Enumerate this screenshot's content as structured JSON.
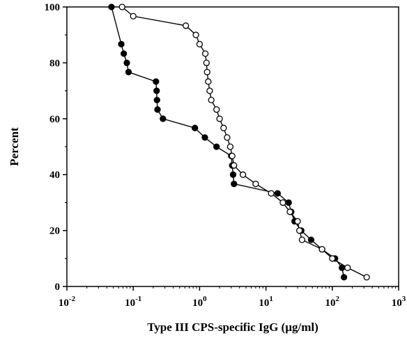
{
  "chart_data": {
    "type": "line",
    "title": "",
    "xlabel": "Type III CPS-specific IgG (µg/ml)",
    "ylabel": "Percent",
    "xscale": "log",
    "xlim": [
      0.01,
      1000
    ],
    "ylim": [
      0,
      100
    ],
    "x_ticks": [
      {
        "base": "10",
        "exp": "-2",
        "value": 0.01
      },
      {
        "base": "10",
        "exp": "-1",
        "value": 0.1
      },
      {
        "base": "10",
        "exp": "0",
        "value": 1
      },
      {
        "base": "10",
        "exp": "1",
        "value": 10
      },
      {
        "base": "10",
        "exp": "2",
        "value": 100
      },
      {
        "base": "10",
        "exp": "3",
        "value": 1000
      }
    ],
    "y_ticks": [
      "0",
      "20",
      "40",
      "60",
      "80",
      "100"
    ],
    "grid": false,
    "series": [
      {
        "marker": "filled-circle",
        "color": "#000000",
        "points": [
          [
            0.047,
            100
          ],
          [
            0.066,
            86.7
          ],
          [
            0.072,
            83.3
          ],
          [
            0.08,
            80.0
          ],
          [
            0.085,
            76.7
          ],
          [
            0.22,
            73.3
          ],
          [
            0.225,
            70.0
          ],
          [
            0.228,
            66.7
          ],
          [
            0.232,
            63.3
          ],
          [
            0.28,
            60.0
          ],
          [
            0.85,
            56.7
          ],
          [
            1.2,
            53.3
          ],
          [
            1.8,
            50.0
          ],
          [
            3.0,
            46.7
          ],
          [
            3.1,
            43.3
          ],
          [
            3.2,
            40.0
          ],
          [
            3.3,
            36.7
          ],
          [
            15,
            33.3
          ],
          [
            22,
            30.0
          ],
          [
            24,
            26.7
          ],
          [
            27,
            23.3
          ],
          [
            34,
            20.0
          ],
          [
            48,
            16.7
          ],
          [
            70,
            13.3
          ],
          [
            110,
            10.0
          ],
          [
            140,
            6.7
          ],
          [
            150,
            3.3
          ]
        ]
      },
      {
        "marker": "open-circle",
        "color": "#000000",
        "points": [
          [
            0.068,
            100
          ],
          [
            0.1,
            96.7
          ],
          [
            0.62,
            93.3
          ],
          [
            0.88,
            90.0
          ],
          [
            1.0,
            86.7
          ],
          [
            1.22,
            83.3
          ],
          [
            1.27,
            80.0
          ],
          [
            1.3,
            76.7
          ],
          [
            1.35,
            73.3
          ],
          [
            1.42,
            70.0
          ],
          [
            1.5,
            66.7
          ],
          [
            1.8,
            63.3
          ],
          [
            2.0,
            60.0
          ],
          [
            2.3,
            56.7
          ],
          [
            2.6,
            53.3
          ],
          [
            2.9,
            50.0
          ],
          [
            3.1,
            46.7
          ],
          [
            3.3,
            43.3
          ],
          [
            4.5,
            40.0
          ],
          [
            7,
            36.7
          ],
          [
            12,
            33.3
          ],
          [
            18,
            30.0
          ],
          [
            23,
            26.7
          ],
          [
            30,
            23.3
          ],
          [
            32,
            20.0
          ],
          [
            35,
            16.7
          ],
          [
            70,
            13.3
          ],
          [
            100,
            10.0
          ],
          [
            170,
            6.7
          ],
          [
            330,
            3.3
          ]
        ]
      }
    ]
  }
}
